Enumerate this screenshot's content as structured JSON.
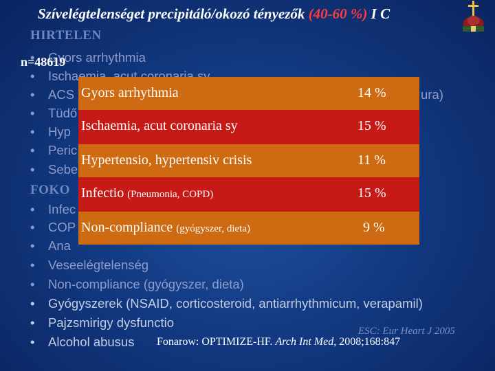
{
  "title": {
    "main": "Szívelégtelenséget precipitáló/okozó tényezők",
    "percent": "(40-60 %)",
    "level": "I C"
  },
  "sample_size": "n=48619",
  "background_list": {
    "heading_sudden": "HIRTELEN",
    "sudden_items": [
      "Gyors arrhythmia",
      "Ischaemia, acut coronaria sy",
      "ACS",
      "Tüdő",
      "Hyp",
      "Peric",
      "Sebe"
    ],
    "acs_tail": "ura)",
    "heading_gradual": "FOKO",
    "gradual_items": [
      "Infec",
      "COP",
      "Ana",
      "Veseelégtelenség",
      "Non-compliance (gyógyszer, dieta)",
      "Gyógyszerek (NSAID, corticosteroid, antiarrhythmicum, verapamil)",
      "Pajzsmirigy dysfunctio",
      "Alcohol abusus"
    ]
  },
  "table": {
    "rows": [
      {
        "label": "Gyors arrhythmia",
        "note": "",
        "value": "14 %"
      },
      {
        "label": "Ischaemia, acut coronaria sy",
        "note": "",
        "value": "15 %"
      },
      {
        "label": "Hypertensio, hypertensiv crisis",
        "note": "",
        "value": "11 %"
      },
      {
        "label": "Infectio",
        "note": "(Pneumonia, COPD)",
        "value": "15 %"
      },
      {
        "label": "Non-compliance",
        "note": "(gyógyszer, dieta)",
        "value": "9 %"
      }
    ]
  },
  "citations": {
    "esc": "ESC: Eur Heart J 2005",
    "fonarow_prefix": "Fonarow: OPTIMIZE-HF.",
    "fonarow_journal": "Arch Int Med,",
    "fonarow_suffix": "2008;168:847"
  },
  "colors": {
    "background": "#123a82",
    "orange_row": "#cd6a12",
    "red_row": "#c61a17",
    "highlight": "#ff3b3b"
  },
  "icons": [
    "cross-church-icon"
  ]
}
